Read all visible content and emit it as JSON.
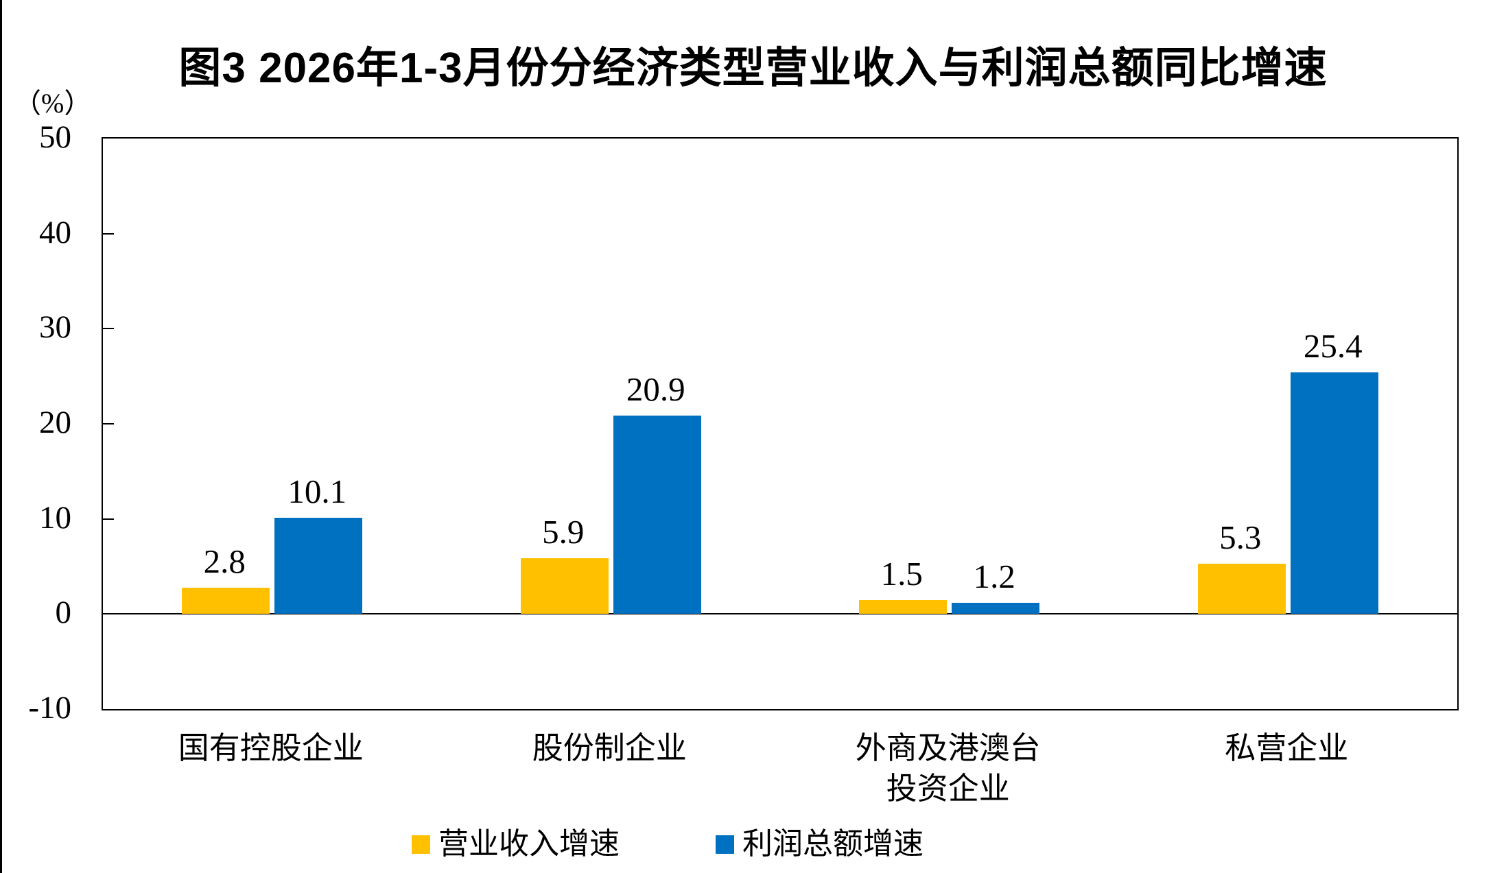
{
  "chart_data": {
    "type": "bar",
    "title": "图3 2026年1-3月份分经济类型营业收入与利润总额同比增速",
    "ylabel": "（%）",
    "xlabel": "",
    "categories": [
      "国有控股企业",
      "股份制企业",
      "外商及港澳台\n投资企业",
      "私营企业"
    ],
    "series": [
      {
        "name": "营业收入增速",
        "color": "#FFC000",
        "values": [
          2.8,
          5.9,
          1.5,
          5.3
        ]
      },
      {
        "name": "利润总额增速",
        "color": "#0070C0",
        "values": [
          10.1,
          20.9,
          1.2,
          25.4
        ]
      }
    ],
    "ylim": [
      -10,
      50
    ],
    "yticks": [
      50,
      40,
      30,
      20,
      10,
      0,
      -10
    ],
    "inner_ticks": [
      40,
      30,
      20,
      10
    ],
    "data_labels": true,
    "legend_position": "bottom",
    "grid": false,
    "colors": {
      "bar_yellow": "#FFC000",
      "bar_blue": "#0070C0",
      "axis": "#000000",
      "background": "#FFFFFF"
    }
  }
}
